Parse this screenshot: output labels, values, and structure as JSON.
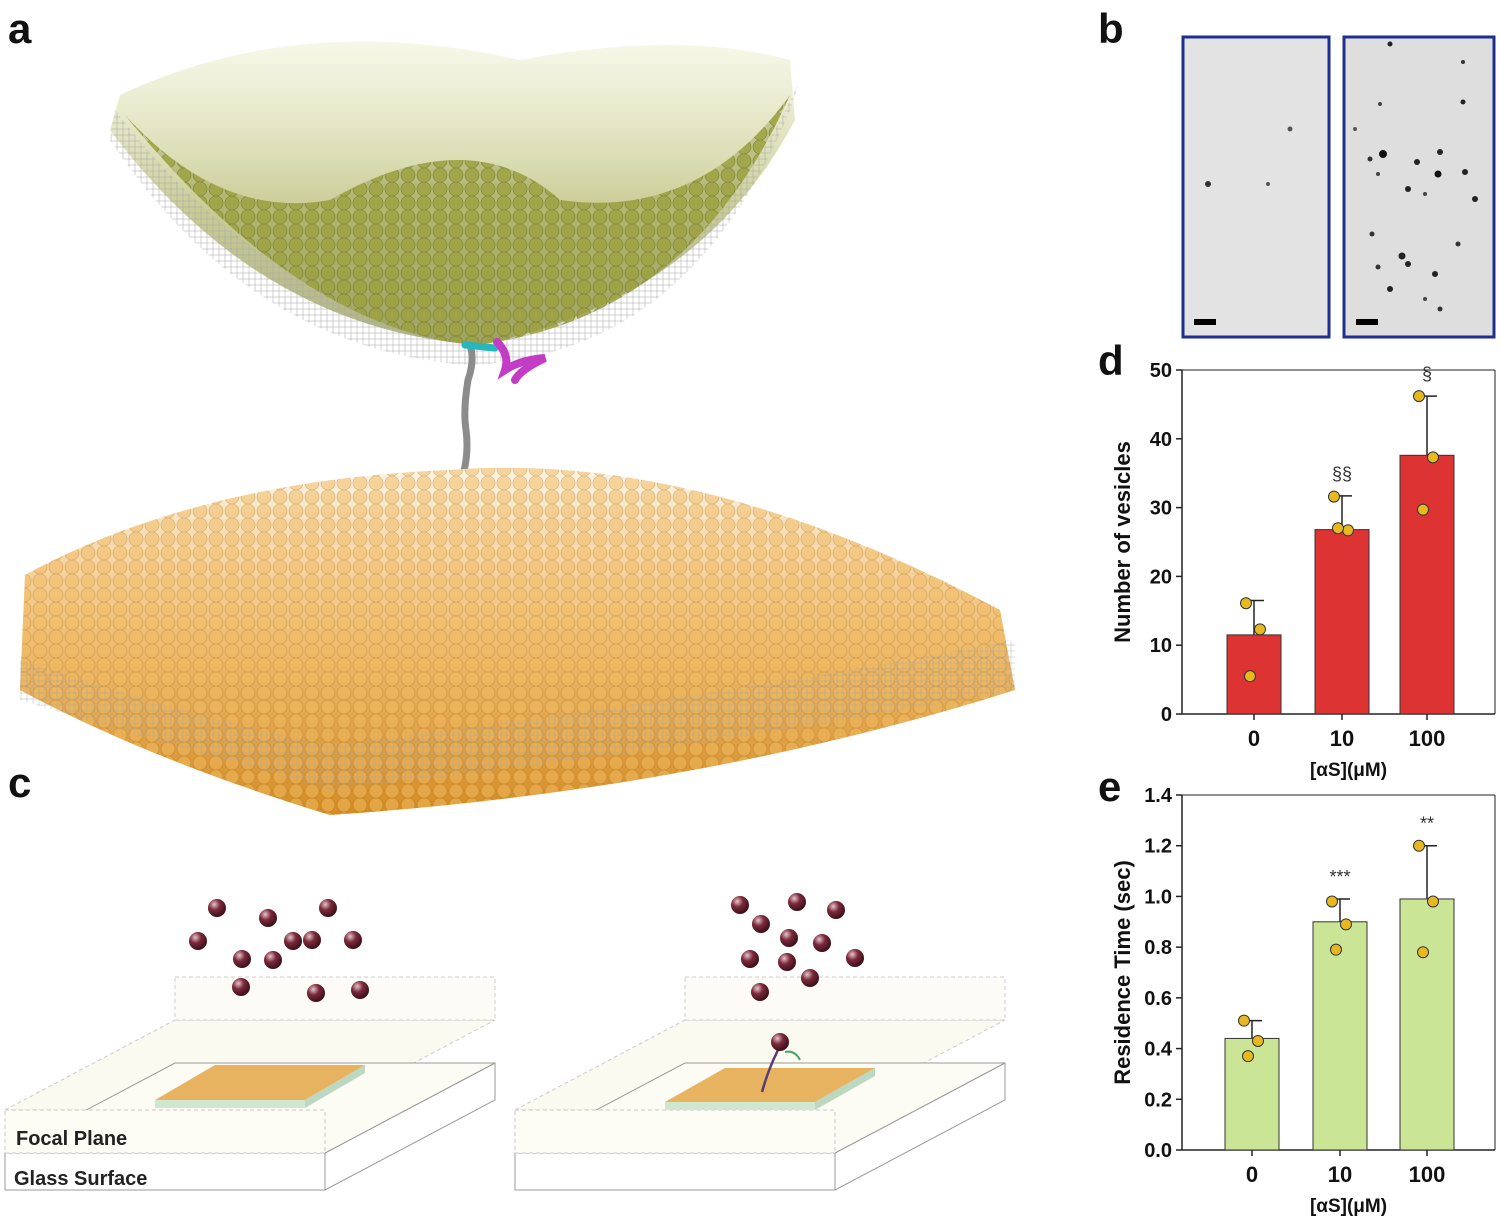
{
  "panels": {
    "a": "a",
    "b": "b",
    "c": "c",
    "d": "d",
    "e": "e"
  },
  "colors": {
    "upper_vesicle": "#9aa03c",
    "lower_bilayer": "#e5a84a",
    "protein": "#8c8c8c",
    "protein_n_term": "#d6243a",
    "helix_cyan": "#27b6bd",
    "helix_magenta": "#c23cc6",
    "panel_b_border": "#1f2f8f",
    "bar_d": "#dd3333",
    "bar_e": "#c9e595",
    "points": "#e8b820",
    "vesicle_sphere": "#6b2236"
  },
  "panel_c": {
    "left_labels": {
      "focal_plane": "Focal Plane",
      "glass_surface": "Glass Surface"
    }
  },
  "chart_data": [
    {
      "id": "d",
      "type": "bar",
      "categories": [
        "0",
        "10",
        "100"
      ],
      "values": [
        11.5,
        26.8,
        37.6
      ],
      "errors": [
        5.0,
        4.9,
        8.6
      ],
      "points": [
        [
          16.1,
          12.3,
          5.5
        ],
        [
          31.6,
          26.7,
          27.0
        ],
        [
          46.2,
          37.3,
          29.7
        ]
      ],
      "significance": [
        "",
        "§§",
        "§"
      ],
      "ylabel": "Number of vesicles",
      "xlabel": "[αS](μM)",
      "ylim": [
        0,
        50
      ],
      "yticks": [
        "0",
        "10",
        "20",
        "30",
        "40",
        "50"
      ]
    },
    {
      "id": "e",
      "type": "bar",
      "categories": [
        "0",
        "10",
        "100"
      ],
      "values": [
        0.44,
        0.9,
        0.99
      ],
      "errors": [
        0.07,
        0.09,
        0.21
      ],
      "points": [
        [
          0.51,
          0.43,
          0.37
        ],
        [
          0.98,
          0.89,
          0.79
        ],
        [
          1.2,
          0.98,
          0.78
        ]
      ],
      "significance": [
        "",
        "***",
        "**"
      ],
      "ylabel": "Residence Time (sec)",
      "xlabel": "[αS](μM)",
      "ylim": [
        0,
        1.4
      ],
      "yticks": [
        "0.0",
        "0.2",
        "0.4",
        "0.6",
        "0.8",
        "1.0",
        "1.2",
        "1.4"
      ]
    }
  ]
}
